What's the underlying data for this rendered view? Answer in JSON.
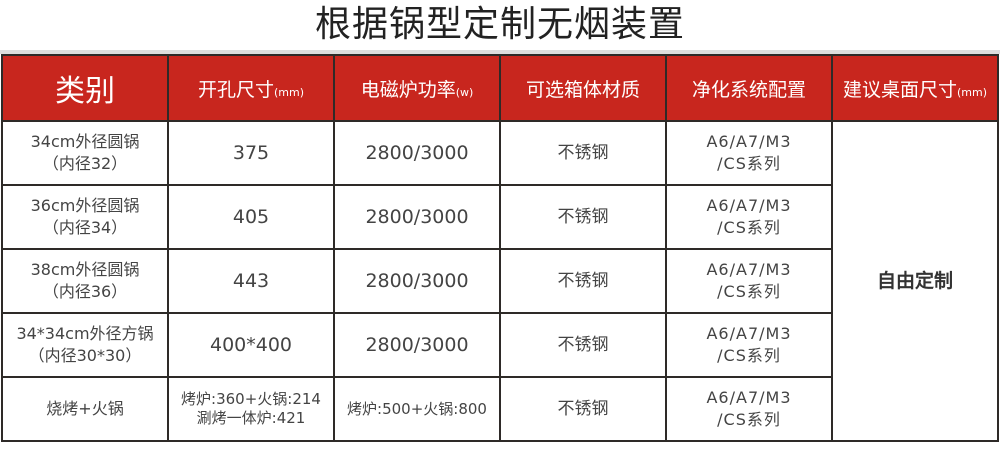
{
  "title": "根据锅型定制无烟装置",
  "header": {
    "category": "类别",
    "hole": "开孔尺寸",
    "hole_unit": "(mm)",
    "power": "电磁炉功率",
    "power_unit": "(w)",
    "material": "可选箱体材质",
    "system": "净化系统配置",
    "table_size": "建议桌面尺寸",
    "table_unit": "(mm)"
  },
  "custom": "自由定制",
  "rows": [
    {
      "cat1": "34cm外径圆锅",
      "cat2": "（内径32）",
      "hole1": "375",
      "hole2": "",
      "power": "2800/3000",
      "material": "不锈钢",
      "sys1": "A6/A7/M3",
      "sys2": "/CS系列"
    },
    {
      "cat1": "36cm外径圆锅",
      "cat2": "（内径34）",
      "hole1": "405",
      "hole2": "",
      "power": "2800/3000",
      "material": "不锈钢",
      "sys1": "A6/A7/M3",
      "sys2": "/CS系列"
    },
    {
      "cat1": "38cm外径圆锅",
      "cat2": "（内径36）",
      "hole1": "443",
      "hole2": "",
      "power": "2800/3000",
      "material": "不锈钢",
      "sys1": "A6/A7/M3",
      "sys2": "/CS系列"
    },
    {
      "cat1": "34*34cm外径方锅",
      "cat2": "（内径30*30）",
      "hole1": "400*400",
      "hole2": "",
      "power": "2800/3000",
      "material": "不锈钢",
      "sys1": "A6/A7/M3",
      "sys2": "/CS系列"
    },
    {
      "cat1": "烧烤+火锅",
      "cat2": "",
      "hole1": "烤炉:360+火锅:214",
      "hole2": "涮烤一体炉:421",
      "power": "烤炉:500+火锅:800",
      "material": "不锈钢",
      "sys1": "A6/A7/M3",
      "sys2": "/CS系列"
    }
  ]
}
